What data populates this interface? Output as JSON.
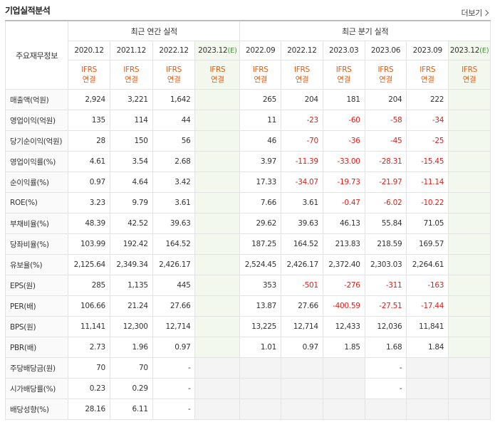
{
  "header": {
    "title": "기업실적분석",
    "more": "더보기"
  },
  "row_header": "주요재무정보",
  "groups": {
    "annual": "최근 연간 실적",
    "quarter": "최근 분기 실적"
  },
  "periods": {
    "annual": [
      "2020.12",
      "2021.12",
      "2022.12",
      "2023.12(E)"
    ],
    "quarter": [
      "2022.09",
      "2022.12",
      "2023.03",
      "2023.06",
      "2023.09",
      "2023.12(E)"
    ]
  },
  "ifrs": {
    "line1": "IFRS",
    "line2": "연결"
  },
  "rows": [
    {
      "label": "매출액(억원)",
      "values": [
        "2,924",
        "3,221",
        "1,642",
        "",
        "265",
        "204",
        "181",
        "204",
        "222",
        ""
      ]
    },
    {
      "label": "영업이익(억원)",
      "values": [
        "135",
        "114",
        "44",
        "",
        "11",
        "-23",
        "-60",
        "-58",
        "-34",
        ""
      ]
    },
    {
      "label": "당기순이익(억원)",
      "values": [
        "28",
        "150",
        "56",
        "",
        "46",
        "-70",
        "-36",
        "-45",
        "-25",
        ""
      ]
    },
    {
      "label": "영업이익률(%)",
      "values": [
        "4.61",
        "3.54",
        "2.68",
        "",
        "3.97",
        "-11.39",
        "-33.00",
        "-28.31",
        "-15.45",
        ""
      ]
    },
    {
      "label": "순이익률(%)",
      "values": [
        "0.97",
        "4.64",
        "3.42",
        "",
        "17.33",
        "-34.07",
        "-19.73",
        "-21.97",
        "-11.14",
        ""
      ]
    },
    {
      "label": "ROE(%)",
      "values": [
        "3.23",
        "9.79",
        "3.61",
        "",
        "7.66",
        "3.61",
        "-0.47",
        "-6.02",
        "-10.22",
        ""
      ]
    },
    {
      "label": "부채비율(%)",
      "values": [
        "48.39",
        "42.52",
        "39.63",
        "",
        "29.62",
        "39.63",
        "46.13",
        "55.84",
        "71.05",
        ""
      ]
    },
    {
      "label": "당좌비율(%)",
      "values": [
        "103.99",
        "192.42",
        "164.52",
        "",
        "187.25",
        "164.52",
        "213.83",
        "218.59",
        "169.57",
        ""
      ]
    },
    {
      "label": "유보율(%)",
      "values": [
        "2,125.64",
        "2,349.34",
        "2,426.17",
        "",
        "2,524.45",
        "2,426.17",
        "2,372.40",
        "2,303.03",
        "2,264.61",
        ""
      ]
    },
    {
      "label": "EPS(원)",
      "values": [
        "285",
        "1,135",
        "445",
        "",
        "353",
        "-501",
        "-276",
        "-311",
        "-163",
        ""
      ]
    },
    {
      "label": "PER(배)",
      "values": [
        "106.66",
        "21.24",
        "27.66",
        "",
        "13.87",
        "27.66",
        "-400.59",
        "-27.51",
        "-17.44",
        ""
      ]
    },
    {
      "label": "BPS(원)",
      "values": [
        "11,141",
        "12,300",
        "12,714",
        "",
        "13,225",
        "12,714",
        "12,433",
        "12,036",
        "11,841",
        ""
      ]
    },
    {
      "label": "PBR(배)",
      "values": [
        "2.73",
        "1.96",
        "0.97",
        "",
        "1.01",
        "0.97",
        "1.85",
        "1.68",
        "1.84",
        ""
      ]
    },
    {
      "label": "주당배당금(원)",
      "values": [
        "70",
        "70",
        "-",
        "",
        "",
        "",
        "",
        "-",
        "",
        ""
      ]
    },
    {
      "label": "시가배당률(%)",
      "values": [
        "0.23",
        "0.29",
        "-",
        "",
        "",
        "",
        "",
        "-",
        "",
        ""
      ]
    },
    {
      "label": "배당성향(%)",
      "values": [
        "28.16",
        "6.11",
        "-",
        "",
        "",
        "",
        "",
        "",
        "",
        ""
      ]
    }
  ]
}
